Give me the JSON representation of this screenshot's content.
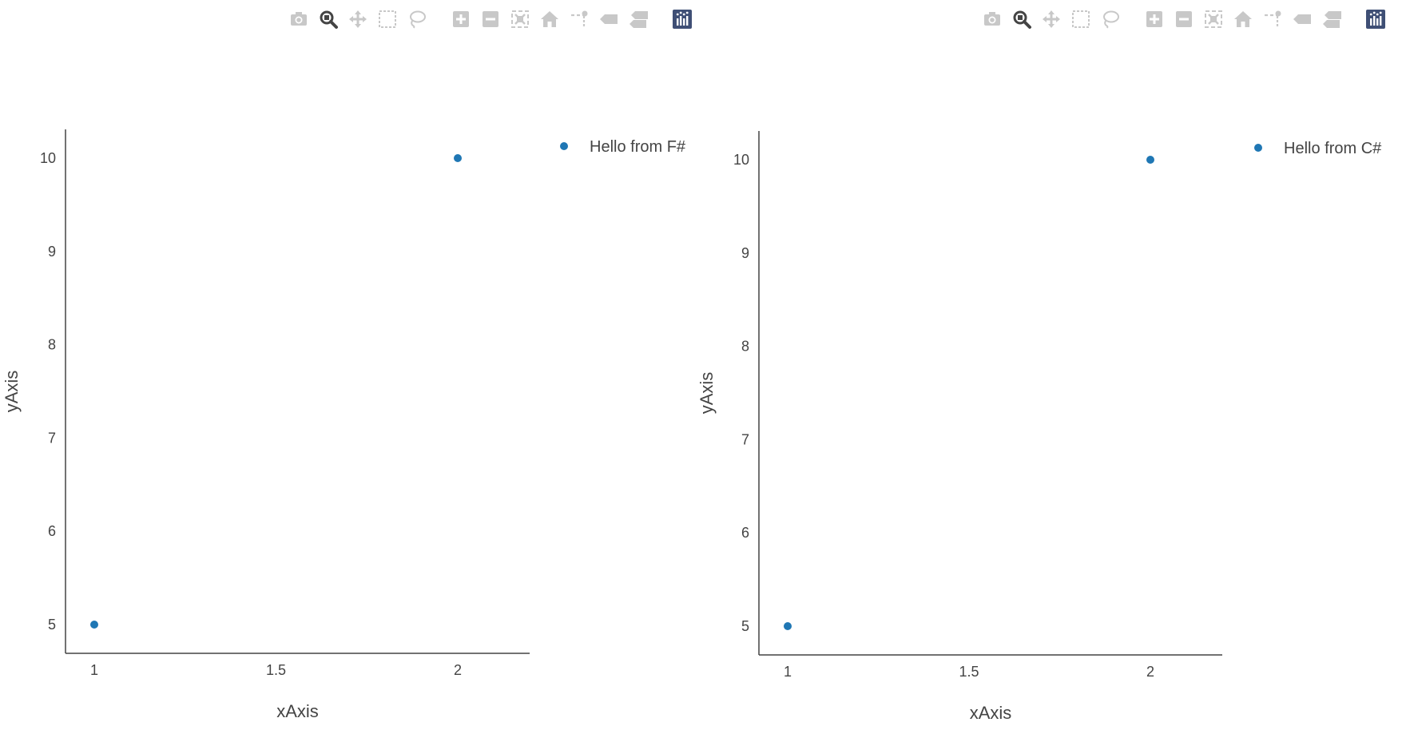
{
  "modebar": {
    "buttons": [
      {
        "name": "camera-icon",
        "group": 0,
        "active": false
      },
      {
        "name": "zoom-icon",
        "group": 0,
        "active": true
      },
      {
        "name": "pan-icon",
        "group": 0,
        "active": false
      },
      {
        "name": "box-select-icon",
        "group": 0,
        "active": false
      },
      {
        "name": "lasso-select-icon",
        "group": 0,
        "active": false
      },
      {
        "name": "zoom-in-icon",
        "group": 1,
        "active": false
      },
      {
        "name": "zoom-out-icon",
        "group": 1,
        "active": false
      },
      {
        "name": "autoscale-icon",
        "group": 1,
        "active": false
      },
      {
        "name": "home-icon",
        "group": 1,
        "active": false
      },
      {
        "name": "spikelines-icon",
        "group": 1,
        "active": false
      },
      {
        "name": "hover-closest-icon",
        "group": 1,
        "active": false
      },
      {
        "name": "hover-compare-icon",
        "group": 1,
        "active": false
      },
      {
        "name": "plotly-logo-icon",
        "group": 2,
        "active": false
      }
    ],
    "colors": {
      "inactive": "#c8c8c8",
      "active": "#444444",
      "logo": "#3f4f75"
    }
  },
  "chart_data": [
    {
      "type": "scatter",
      "title": "",
      "xlabel": "xAxis",
      "ylabel": "yAxis",
      "xlim": [
        1,
        2
      ],
      "ylim": [
        5,
        10
      ],
      "x_ticks": [
        "1",
        "1.5",
        "2"
      ],
      "y_ticks": [
        "5",
        "6",
        "7",
        "8",
        "9",
        "10"
      ],
      "grid": false,
      "legend_placement": "top-right",
      "series": [
        {
          "name": "Hello from F#",
          "x": [
            1,
            2
          ],
          "y": [
            5,
            10
          ],
          "color": "#1f77b4"
        }
      ]
    },
    {
      "type": "scatter",
      "title": "",
      "xlabel": "xAxis",
      "ylabel": "yAxis",
      "xlim": [
        1,
        2
      ],
      "ylim": [
        5,
        10
      ],
      "x_ticks": [
        "1",
        "1.5",
        "2"
      ],
      "y_ticks": [
        "5",
        "6",
        "7",
        "8",
        "9",
        "10"
      ],
      "grid": false,
      "legend_placement": "top-right",
      "series": [
        {
          "name": "Hello from C#",
          "x": [
            1,
            2
          ],
          "y": [
            5,
            10
          ],
          "color": "#1f77b4"
        }
      ]
    }
  ]
}
